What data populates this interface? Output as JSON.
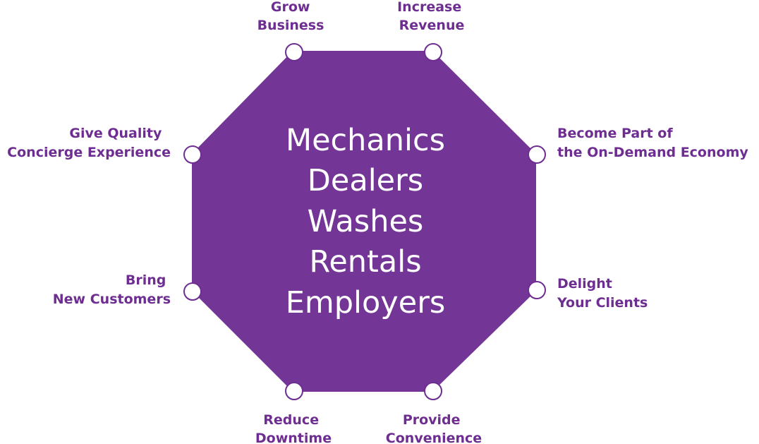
{
  "colors": {
    "octagon_fill": "#743696",
    "label_color": "#6e2e91",
    "node_fill": "#ffffff",
    "center_text": "#ffffff"
  },
  "center": {
    "lines": [
      "Mechanics",
      "Dealers",
      "Washes",
      "Rentals",
      "Employers"
    ]
  },
  "benefits": [
    {
      "id": "grow-business",
      "lines": [
        "Grow",
        "Business"
      ]
    },
    {
      "id": "increase-revenue",
      "lines": [
        "Increase",
        "Revenue"
      ]
    },
    {
      "id": "on-demand-economy",
      "lines": [
        "Become Part of",
        "the On-Demand Economy"
      ]
    },
    {
      "id": "delight-clients",
      "lines": [
        "Delight",
        "Your Clients"
      ]
    },
    {
      "id": "provide-convenience",
      "lines": [
        "Provide",
        "Convenience"
      ]
    },
    {
      "id": "reduce-downtime",
      "lines": [
        "Reduce",
        "Downtime"
      ]
    },
    {
      "id": "new-customers",
      "lines": [
        "Bring",
        "New Customers"
      ]
    },
    {
      "id": "concierge-experience",
      "lines": [
        "Give Quality",
        "Concierge Experience"
      ]
    }
  ]
}
